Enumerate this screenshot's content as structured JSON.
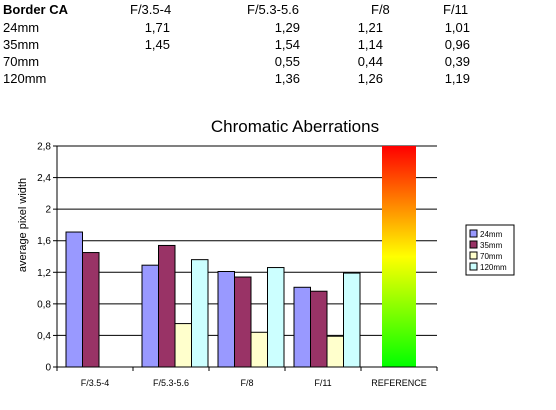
{
  "table": {
    "title": "Border CA",
    "columns": [
      "F/3.5-4",
      "F/5.3-5.6",
      "F/8",
      "F/11"
    ],
    "rows": [
      {
        "label": "24mm",
        "values": [
          "1,71",
          "1,29",
          "1,21",
          "1,01"
        ]
      },
      {
        "label": "35mm",
        "values": [
          "1,45",
          "1,54",
          "1,14",
          "0,96"
        ]
      },
      {
        "label": "70mm",
        "values": [
          "",
          "0,55",
          "0,44",
          "0,39"
        ]
      },
      {
        "label": "120mm",
        "values": [
          "",
          "1,36",
          "1,26",
          "1,19"
        ]
      }
    ]
  },
  "chart_data": {
    "type": "bar",
    "title": "Chromatic Aberrations",
    "xlabel": "",
    "ylabel": "average pixel width",
    "categories": [
      "F/3.5-4",
      "F/5.3-5.6",
      "F/8",
      "F/11",
      "REFERENCE"
    ],
    "ylim": [
      0,
      2.8
    ],
    "yticks": [
      "0",
      "0,4",
      "0,8",
      "1,2",
      "1,6",
      "2",
      "2,4",
      "2,8"
    ],
    "yticks_values": [
      0,
      0.4,
      0.8,
      1.2,
      1.6,
      2.0,
      2.4,
      2.8
    ],
    "grid": true,
    "legend_position": "right",
    "series": [
      {
        "name": "24mm",
        "color": "#9999ff",
        "values": [
          1.71,
          1.29,
          1.21,
          1.01,
          null
        ]
      },
      {
        "name": "35mm",
        "color": "#993366",
        "values": [
          1.45,
          1.54,
          1.14,
          0.96,
          null
        ]
      },
      {
        "name": "70mm",
        "color": "#ffffcc",
        "values": [
          null,
          0.55,
          0.44,
          0.39,
          null
        ]
      },
      {
        "name": "120mm",
        "color": "#ccffff",
        "values": [
          null,
          1.36,
          1.26,
          1.19,
          null
        ]
      }
    ],
    "reference_bar": {
      "value": 2.8,
      "gradient": [
        "#ff0000",
        "#ffff00",
        "#00ff00"
      ]
    }
  }
}
